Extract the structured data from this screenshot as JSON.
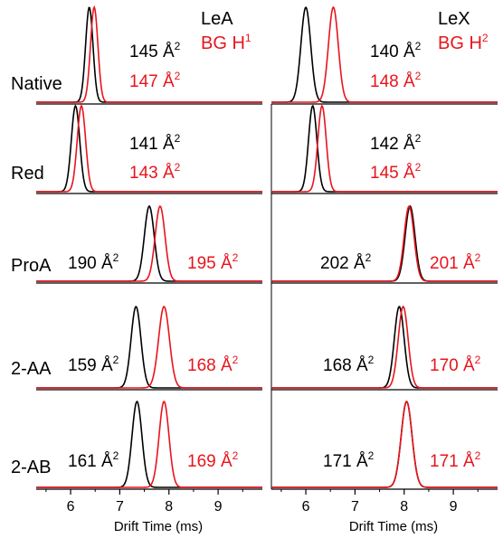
{
  "chart_data": {
    "type": "line",
    "layout": "5 rows x 2 columns of drift-time spectra",
    "xlabel": "Drift Time (ms)",
    "xlim": [
      5.3,
      9.9
    ],
    "xticks": [
      6,
      7,
      8,
      9
    ],
    "legend": {
      "left": [
        {
          "text": "LeA",
          "color": "#000000"
        },
        {
          "text": "BG H",
          "sup": "1",
          "color": "#e8141c"
        }
      ],
      "right": [
        {
          "text": "LeX",
          "color": "#000000"
        },
        {
          "text": "BG H",
          "sup": "2",
          "color": "#e8141c"
        }
      ]
    },
    "colors": {
      "black_series": "#000000",
      "red_series": "#e8141c"
    },
    "rows": [
      {
        "label": "Native",
        "panels": [
          {
            "black": {
              "center": 6.38,
              "width": 0.075,
              "ccs": "145 Å²"
            },
            "red": {
              "center": 6.48,
              "width": 0.075,
              "ccs": "147 Å²"
            }
          },
          {
            "black": {
              "center": 6.0,
              "width": 0.1,
              "ccs": "140 Å²"
            },
            "red": {
              "center": 6.56,
              "width": 0.1,
              "ccs": "148 Å²"
            }
          }
        ]
      },
      {
        "label": "Red",
        "panels": [
          {
            "black": {
              "center": 6.1,
              "width": 0.085,
              "ccs": "141 Å²"
            },
            "red": {
              "center": 6.22,
              "width": 0.085,
              "ccs": "143 Å²"
            }
          },
          {
            "black": {
              "center": 6.14,
              "width": 0.085,
              "ccs": "142 Å²"
            },
            "red": {
              "center": 6.33,
              "width": 0.085,
              "ccs": "145 Å²"
            }
          }
        ]
      },
      {
        "label": "ProA",
        "panels": [
          {
            "black": {
              "center": 7.6,
              "width": 0.1,
              "ccs": "190 Å²"
            },
            "red": {
              "center": 7.82,
              "width": 0.1,
              "ccs": "195 Å²"
            }
          },
          {
            "black": {
              "center": 8.12,
              "width": 0.1,
              "ccs": "202 Å²"
            },
            "red": {
              "center": 8.1,
              "width": 0.1,
              "ccs": "201 Å²"
            }
          }
        ]
      },
      {
        "label": "2-AA",
        "panels": [
          {
            "black": {
              "center": 7.33,
              "width": 0.1,
              "ccs": "159 Å²"
            },
            "red": {
              "center": 7.9,
              "width": 0.11,
              "ccs": "168 Å²"
            }
          },
          {
            "black": {
              "center": 7.9,
              "width": 0.1,
              "ccs": "168 Å²"
            },
            "red": {
              "center": 7.98,
              "width": 0.1,
              "ccs": "170 Å²"
            }
          }
        ]
      },
      {
        "label": "2-AB",
        "panels": [
          {
            "black": {
              "center": 7.35,
              "width": 0.1,
              "ccs": "161 Å²"
            },
            "red": {
              "center": 7.9,
              "width": 0.1,
              "ccs": "169 Å²"
            }
          },
          {
            "black": {
              "center": 8.05,
              "width": 0.11,
              "ccs": "171 Å²"
            },
            "red": {
              "center": 8.05,
              "width": 0.11,
              "ccs": "171 Å²"
            }
          }
        ]
      }
    ]
  }
}
